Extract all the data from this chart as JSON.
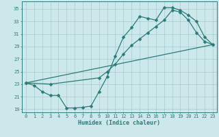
{
  "title": "",
  "xlabel": "Humidex (Indice chaleur)",
  "xlim": [
    -0.5,
    23.5
  ],
  "ylim": [
    18.5,
    36.2
  ],
  "xticks": [
    0,
    1,
    2,
    3,
    4,
    5,
    6,
    7,
    8,
    9,
    10,
    11,
    12,
    13,
    14,
    15,
    16,
    17,
    18,
    19,
    20,
    21,
    22,
    23
  ],
  "yticks": [
    19,
    21,
    23,
    25,
    27,
    29,
    31,
    33,
    35
  ],
  "background_color": "#cce8ea",
  "grid_color": "#aad0d4",
  "line_color": "#2a7a7a",
  "line1_x": [
    0,
    1,
    2,
    3,
    4,
    5,
    6,
    7,
    8,
    9,
    10,
    11,
    12,
    13,
    14,
    15,
    16,
    17,
    18,
    19,
    20,
    21,
    22,
    23
  ],
  "line1_y": [
    23.2,
    22.8,
    21.8,
    21.2,
    21.2,
    19.2,
    19.2,
    19.3,
    19.5,
    21.8,
    24.2,
    27.5,
    30.5,
    32.0,
    33.8,
    33.5,
    33.2,
    35.2,
    35.2,
    34.8,
    34.0,
    33.0,
    30.5,
    29.3
  ],
  "line2_x": [
    0,
    3,
    9,
    10,
    11,
    12,
    13,
    14,
    15,
    16,
    17,
    18,
    19,
    20,
    21,
    22,
    23
  ],
  "line2_y": [
    23.2,
    23.0,
    24.0,
    25.0,
    26.2,
    27.8,
    29.2,
    30.2,
    31.2,
    32.2,
    33.2,
    34.8,
    34.5,
    33.2,
    31.2,
    29.8,
    29.3
  ],
  "line3_x": [
    0,
    23
  ],
  "line3_y": [
    23.2,
    29.3
  ],
  "marker_size": 2.5,
  "line_width": 0.9,
  "font_size_ticks": 5.0,
  "font_size_xlabel": 6.0
}
